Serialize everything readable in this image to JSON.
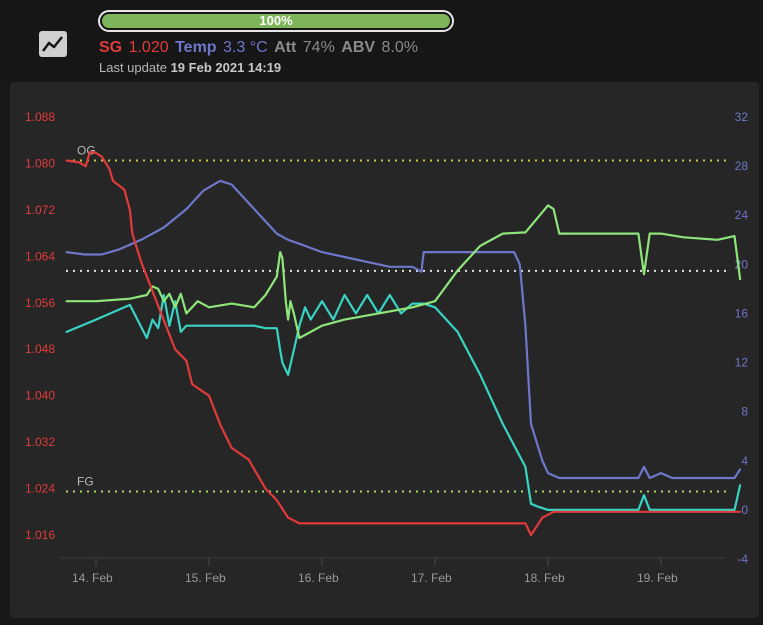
{
  "header": {
    "progress_label": "100%",
    "progress_value": 1.0,
    "icon": "chart-line-icon",
    "sg_label": "SG",
    "sg_value": "1.020",
    "temp_label": "Temp",
    "temp_value": "3.3 °C",
    "att_label": "Att",
    "att_value": "74%",
    "abv_label": "ABV",
    "abv_value": "8.0%",
    "update_prefix": "Last update",
    "update_time": "19 Feb 2021 14:19"
  },
  "colors": {
    "sg": "#e03a3a",
    "temp": "#6e77c9",
    "green_series": "#8ee57a",
    "cyan_series": "#39d3c4",
    "og_line": "#c8c84a",
    "fg_line": "#a8d86a",
    "mid_line": "#e6e6e6",
    "progress_fill": "#7fb55a"
  },
  "chart_data": {
    "type": "line",
    "x_ticks": [
      "14. Feb",
      "15. Feb",
      "16. Feb",
      "17. Feb",
      "18. Feb",
      "19. Feb"
    ],
    "xlim": [
      "13 Feb 19:10",
      "19 Feb 14:19"
    ],
    "y_left": {
      "ticks": [
        "1.088",
        "1.080",
        "1.072",
        "1.064",
        "1.056",
        "1.048",
        "1.040",
        "1.032",
        "1.024",
        "1.016"
      ],
      "range": [
        1.016,
        1.088
      ]
    },
    "y_right": {
      "ticks": [
        "32",
        "28",
        "24",
        "20",
        "16",
        "12",
        "8",
        "4",
        "0",
        "-4"
      ],
      "range": [
        -4,
        32
      ]
    },
    "plot_lines": [
      {
        "label": "OG",
        "value": 1.0805,
        "axis": "left"
      },
      {
        "label": "FG",
        "value": 1.0235,
        "axis": "left"
      },
      {
        "label": "",
        "value": 1.0615,
        "axis": "left"
      }
    ],
    "series": [
      {
        "axis": "left",
        "x": [
          -0.26,
          -0.15,
          -0.09,
          -0.07,
          -0.05,
          0.0,
          0.05,
          0.12,
          0.15,
          0.25,
          0.3,
          0.32,
          0.4,
          0.5,
          0.6,
          0.7,
          0.8,
          0.85,
          1.0,
          1.1,
          1.2,
          1.35,
          1.5,
          1.6,
          1.7,
          1.8,
          1.9,
          2.0,
          2.2,
          2.5,
          3.0,
          3.5,
          3.8,
          3.85,
          3.9,
          3.95,
          4.05,
          4.5,
          5.0,
          5.5,
          5.7
        ],
        "y": [
          1.0805,
          1.0802,
          1.0795,
          1.081,
          1.082,
          1.0818,
          1.0812,
          1.079,
          1.077,
          1.0755,
          1.072,
          1.068,
          1.063,
          1.058,
          1.053,
          1.048,
          1.046,
          1.042,
          1.04,
          1.035,
          1.031,
          1.029,
          1.024,
          1.022,
          1.019,
          1.018,
          1.018,
          1.018,
          1.018,
          1.018,
          1.018,
          1.018,
          1.018,
          1.016,
          1.0175,
          1.019,
          1.02,
          1.02,
          1.02,
          1.02,
          1.02
        ]
      },
      {
        "axis": "right",
        "x": [
          -0.26,
          -0.1,
          0.05,
          0.2,
          0.4,
          0.6,
          0.8,
          0.95,
          1.1,
          1.2,
          1.3,
          1.45,
          1.6,
          1.7,
          1.85,
          2.0,
          2.2,
          2.4,
          2.6,
          2.8,
          2.88,
          2.9,
          3.2,
          3.5,
          3.7,
          3.75,
          3.8,
          3.85,
          3.95,
          4.0,
          4.1,
          4.2,
          4.5,
          4.8,
          4.85,
          4.9,
          5.0,
          5.1,
          5.3,
          5.5,
          5.65,
          5.7
        ],
        "y": [
          21.0,
          20.8,
          20.8,
          21.2,
          22.0,
          23.0,
          24.5,
          26.0,
          26.8,
          26.5,
          25.5,
          24.0,
          22.5,
          22.0,
          21.5,
          21.0,
          20.6,
          20.2,
          19.8,
          19.8,
          19.4,
          21.0,
          21.0,
          21.0,
          21.0,
          20.0,
          15.0,
          7.0,
          4.0,
          3.0,
          2.6,
          2.6,
          2.6,
          2.6,
          3.5,
          2.6,
          3.0,
          2.6,
          2.6,
          2.6,
          2.6,
          3.3
        ]
      },
      {
        "axis": "right",
        "x": [
          -0.26,
          0.0,
          0.3,
          0.45,
          0.5,
          0.55,
          0.6,
          0.65,
          0.7,
          0.75,
          0.8,
          0.9,
          1.0,
          1.2,
          1.4,
          1.5,
          1.6,
          1.63,
          1.65,
          1.68,
          1.7,
          1.72,
          1.75,
          1.8,
          1.9,
          2.0,
          2.2,
          2.5,
          2.8,
          3.0,
          3.2,
          3.4,
          3.6,
          3.8,
          4.0,
          4.05,
          4.1,
          4.2,
          4.5,
          4.8,
          4.85,
          4.9,
          5.0,
          5.2,
          5.5,
          5.65,
          5.7
        ],
        "y": [
          17.0,
          17.0,
          17.2,
          17.5,
          18.2,
          18.0,
          17.0,
          17.6,
          16.5,
          17.6,
          16.0,
          17.0,
          16.5,
          16.8,
          16.5,
          17.5,
          19.0,
          21.0,
          20.5,
          17.0,
          15.5,
          17.0,
          16.0,
          14.0,
          14.5,
          15.0,
          15.5,
          16.0,
          16.5,
          17.0,
          19.5,
          21.5,
          22.5,
          22.6,
          24.8,
          24.5,
          22.5,
          22.5,
          22.5,
          22.5,
          19.2,
          22.5,
          22.5,
          22.2,
          22.0,
          22.3,
          18.8
        ]
      },
      {
        "axis": "right",
        "x": [
          -0.26,
          0.0,
          0.3,
          0.45,
          0.5,
          0.55,
          0.6,
          0.65,
          0.7,
          0.75,
          0.8,
          0.9,
          1.0,
          1.2,
          1.4,
          1.5,
          1.6,
          1.63,
          1.65,
          1.7,
          1.75,
          1.8,
          1.85,
          1.9,
          2.0,
          2.1,
          2.2,
          2.3,
          2.4,
          2.5,
          2.6,
          2.7,
          2.8,
          2.9,
          3.0,
          3.2,
          3.4,
          3.6,
          3.8,
          3.85,
          3.9,
          4.0,
          4.1,
          4.5,
          4.8,
          4.85,
          4.9,
          5.0,
          5.5,
          5.65,
          5.7
        ],
        "y": [
          14.5,
          15.5,
          16.7,
          14.0,
          15.5,
          14.8,
          17.5,
          15.0,
          17.0,
          14.5,
          15.0,
          15.0,
          15.0,
          15.0,
          15.0,
          14.8,
          14.8,
          13.0,
          12.0,
          11.0,
          13.0,
          15.0,
          16.5,
          15.5,
          17.0,
          15.5,
          17.5,
          16.0,
          17.5,
          16.0,
          17.5,
          16.0,
          16.8,
          16.8,
          16.5,
          14.5,
          11.0,
          7.0,
          3.5,
          0.5,
          0.3,
          0.0,
          0.0,
          0.0,
          0.0,
          1.2,
          0.0,
          0.0,
          0.0,
          0.0,
          2.0
        ]
      }
    ]
  }
}
